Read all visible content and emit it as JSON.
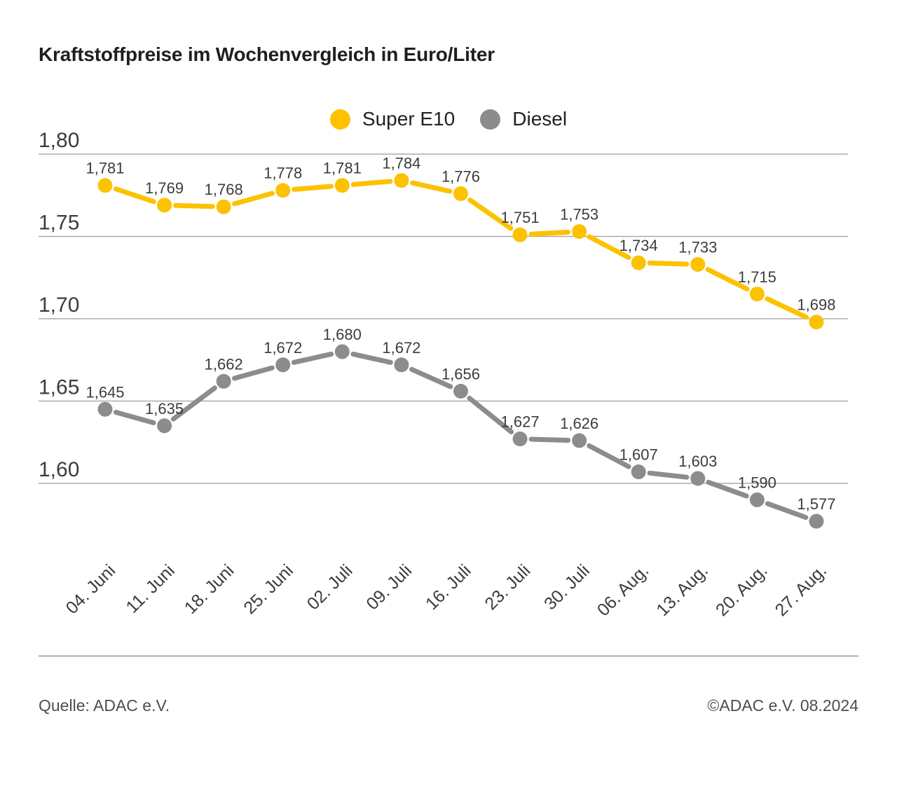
{
  "title": "Kraftstoffpreise im Wochenvergleich in Euro/Liter",
  "legend": {
    "items": [
      {
        "label": "Super E10",
        "color": "#FCC200"
      },
      {
        "label": "Diesel",
        "color": "#8C8C8C"
      }
    ]
  },
  "chart_data": {
    "type": "line",
    "title": "Kraftstoffpreise im Wochenvergleich in Euro/Liter",
    "categories": [
      "04. Juni",
      "11. Juni",
      "18. Juni",
      "25. Juni",
      "02. Juli",
      "09. Juli",
      "16. Juli",
      "23. Juli",
      "30. Juli",
      "06. Aug.",
      "13. Aug.",
      "20. Aug.",
      "27. Aug."
    ],
    "series": [
      {
        "name": "Super E10",
        "color": "#FCC200",
        "values": [
          1.781,
          1.769,
          1.768,
          1.778,
          1.781,
          1.784,
          1.776,
          1.751,
          1.753,
          1.734,
          1.733,
          1.715,
          1.698
        ],
        "value_labels": [
          "1,781",
          "1,769",
          "1,768",
          "1,778",
          "1,781",
          "1,784",
          "1,776",
          "1,751",
          "1,753",
          "1,734",
          "1,733",
          "1,715",
          "1,698"
        ]
      },
      {
        "name": "Diesel",
        "color": "#8C8C8C",
        "values": [
          1.645,
          1.635,
          1.662,
          1.672,
          1.68,
          1.672,
          1.656,
          1.627,
          1.626,
          1.607,
          1.603,
          1.59,
          1.577
        ],
        "value_labels": [
          "1,645",
          "1,635",
          "1,662",
          "1,672",
          "1,680",
          "1,672",
          "1,656",
          "1,627",
          "1,626",
          "1,607",
          "1,603",
          "1,590",
          "1,577"
        ]
      }
    ],
    "ylim": [
      1.6,
      1.8
    ],
    "yticks": [
      {
        "value": 1.8,
        "label": "1,80"
      },
      {
        "value": 1.75,
        "label": "1,75"
      },
      {
        "value": 1.7,
        "label": "1,70"
      },
      {
        "value": 1.65,
        "label": "1,65"
      },
      {
        "value": 1.6,
        "label": "1,60"
      }
    ],
    "grid": true,
    "legend_position": "top-center",
    "value_labels_shown": true
  },
  "footer": {
    "source": "Quelle: ADAC e.V.",
    "copyright": "©ADAC e.V. 08.2024"
  }
}
